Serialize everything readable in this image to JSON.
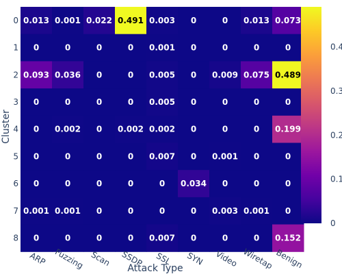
{
  "chart_data": {
    "type": "heatmap",
    "xlabel": "Attack Type",
    "ylabel": "Cluster",
    "x_categories": [
      "ARP",
      "Fuzzing",
      "Scan",
      "SSDP",
      "SSL",
      "SYN",
      "Video",
      "Wiretap",
      "Benign"
    ],
    "y_categories": [
      "0",
      "1",
      "2",
      "3",
      "4",
      "5",
      "6",
      "7",
      "8"
    ],
    "values": [
      [
        0.013,
        0.001,
        0.022,
        0.491,
        0.003,
        0,
        0,
        0.013,
        0.073
      ],
      [
        0,
        0,
        0,
        0,
        0.001,
        0,
        0,
        0,
        0
      ],
      [
        0.093,
        0.036,
        0,
        0,
        0.005,
        0,
        0.009,
        0.075,
        0.489
      ],
      [
        0,
        0,
        0,
        0,
        0.005,
        0,
        0,
        0,
        0
      ],
      [
        0,
        0.002,
        0,
        0.002,
        0.002,
        0,
        0,
        0,
        0.199
      ],
      [
        0,
        0,
        0,
        0,
        0.007,
        0,
        0.001,
        0,
        0
      ],
      [
        0,
        0,
        0,
        0,
        0,
        0.034,
        0,
        0,
        0
      ],
      [
        0.001,
        0.001,
        0,
        0,
        0,
        0,
        0.003,
        0.001,
        0
      ],
      [
        0,
        0,
        0,
        0,
        0.007,
        0,
        0,
        0,
        0.152
      ]
    ],
    "zmin": 0,
    "zmax": 0.491,
    "colorscale": "plasma",
    "colorbar": {
      "ticks": [
        0,
        0.1,
        0.2,
        0.3,
        0.4
      ],
      "tick_labels": [
        "0",
        "0.1",
        "0.2",
        "0.3",
        "0.4"
      ]
    },
    "colors": {
      "plasma": [
        "#0d0887",
        "#46039f",
        "#7201a8",
        "#9c179e",
        "#bd3786",
        "#d8576b",
        "#ed7953",
        "#fb9f3a",
        "#fdca26",
        "#f0f921"
      ],
      "tick_text": "#2a3f5f",
      "light_text": "#ffffff",
      "dark_text": "#000000"
    }
  }
}
